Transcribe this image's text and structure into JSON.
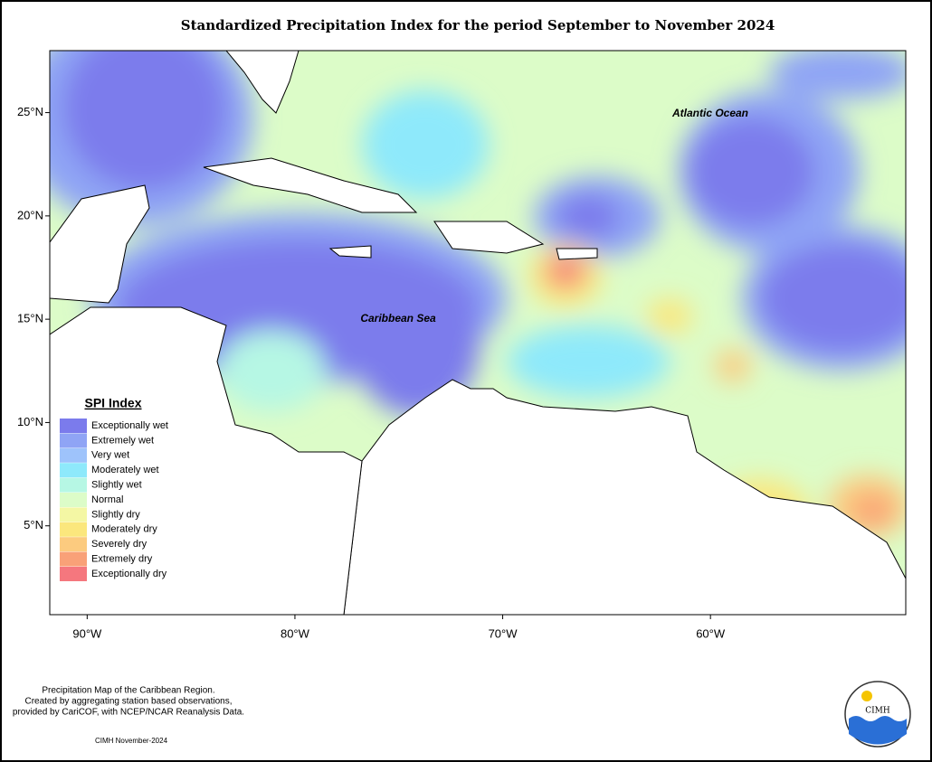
{
  "title": "Standardized Precipitation Index for the period September to November 2024",
  "map": {
    "xlim": [
      -91.8,
      -50.6
    ],
    "ylim": [
      0.7,
      28
    ],
    "xticks": [
      {
        "value": -90,
        "label": "90°W"
      },
      {
        "value": -80,
        "label": "80°W"
      },
      {
        "value": -70,
        "label": "70°W"
      },
      {
        "value": -60,
        "label": "60°W"
      }
    ],
    "yticks": [
      {
        "value": 5,
        "label": "5°N"
      },
      {
        "value": 10,
        "label": "10°N"
      },
      {
        "value": 15,
        "label": "15°N"
      },
      {
        "value": 20,
        "label": "20°N"
      },
      {
        "value": 25,
        "label": "25°N"
      }
    ],
    "labels": [
      "Atlantic Ocean",
      "Caribbean Sea"
    ]
  },
  "legend": {
    "title": "SPI Index",
    "items": [
      {
        "name": "Exceptionally wet",
        "color": "#7b7bec"
      },
      {
        "name": "Extremely wet",
        "color": "#8fa4f5"
      },
      {
        "name": "Very wet",
        "color": "#9ec3fb"
      },
      {
        "name": "Moderately wet",
        "color": "#8ee9fb"
      },
      {
        "name": "Slightly wet",
        "color": "#b6f7e4"
      },
      {
        "name": "Normal",
        "color": "#dcfcc8"
      },
      {
        "name": "Slightly dry",
        "color": "#f4f7a4"
      },
      {
        "name": "Moderately dry",
        "color": "#fbe77d"
      },
      {
        "name": "Severely dry",
        "color": "#fccb7f"
      },
      {
        "name": "Extremely dry",
        "color": "#f9a178"
      },
      {
        "name": "Exceptionally dry",
        "color": "#f5777e"
      }
    ]
  },
  "footer": {
    "lines": [
      "Precipitation Map of the Caribbean Region.",
      "Created by aggregating station based observations,",
      "provided by CariCOF, with NCEP/NCAR Reanalysis Data."
    ],
    "credit": "CIMH November-2024",
    "logo": "CIMH"
  }
}
